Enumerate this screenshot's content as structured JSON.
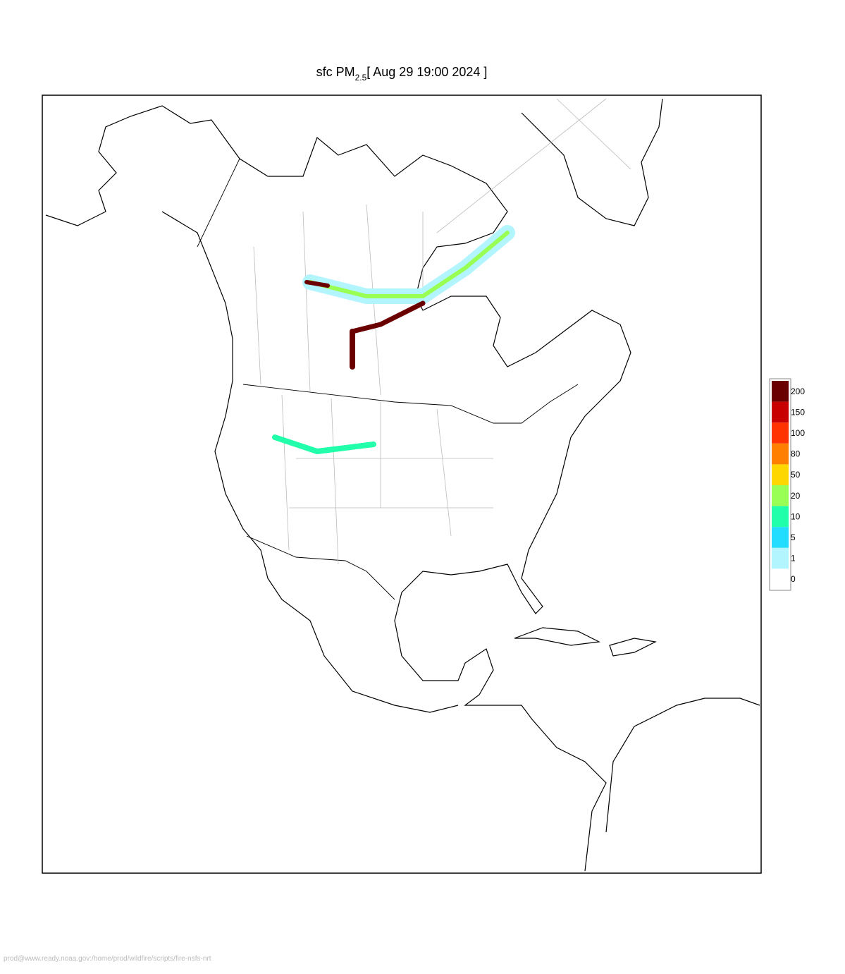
{
  "title": {
    "main": "sfc PM",
    "sub": "2.5",
    "time": "[ Aug 29 19:00 2024 ]"
  },
  "legend": [
    {
      "label": 200,
      "color": "#6b0000"
    },
    {
      "label": 150,
      "color": "#c80000"
    },
    {
      "label": 100,
      "color": "#ff3300"
    },
    {
      "label": 80,
      "color": "#ff8000"
    },
    {
      "label": 50,
      "color": "#ffd700"
    },
    {
      "label": 20,
      "color": "#99ff55"
    },
    {
      "label": 10,
      "color": "#22ffaa"
    },
    {
      "label": 5,
      "color": "#22ddff"
    },
    {
      "label": 1,
      "color": "#b3f5ff"
    },
    {
      "label": 0,
      "color": "#ffffff"
    }
  ],
  "footer": "prod@www.ready.noaa.gov:/home/prod/wildfire/scripts/fire-nsfs-nrt"
}
